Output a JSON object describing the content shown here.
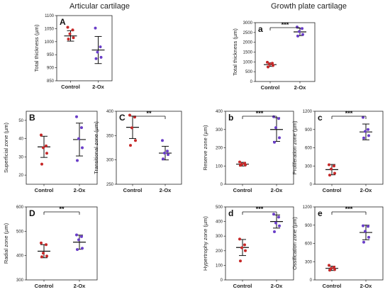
{
  "headings": {
    "left": "Articular cartilage",
    "right": "Growth plate cartilage"
  },
  "colors": {
    "control": "#c62828",
    "treatment": "#6a3ec8",
    "axis": "#222222"
  },
  "chart_data": [
    {
      "type": "scatter",
      "letter": "A",
      "ylabel": "Total thickness (µm)",
      "ylim": [
        850,
        1100
      ],
      "yticks": [
        850,
        900,
        950,
        1000,
        1050,
        1100
      ],
      "categories": [
        "Control",
        "2-Ox"
      ],
      "series": [
        {
          "points": [
            1055,
            1045,
            1030,
            1015,
            1010
          ],
          "mean": 1022,
          "sd": 20
        },
        {
          "points": [
            1052,
            980,
            960,
            940,
            935
          ],
          "mean": 968,
          "sd": 52
        }
      ],
      "significance": null
    },
    {
      "type": "scatter",
      "letter": "a",
      "ylabel": "Total thickness (µm)",
      "ylim": [
        0,
        3000
      ],
      "yticks": [
        0,
        500,
        1000,
        1500,
        2000,
        2500,
        3000
      ],
      "categories": [
        "Control",
        "2-Ox"
      ],
      "series": [
        {
          "points": [
            980,
            930,
            880,
            820,
            740
          ],
          "mean": 860,
          "sd": 90
        },
        {
          "points": [
            2780,
            2700,
            2550,
            2400,
            2320
          ],
          "mean": 2530,
          "sd": 190
        }
      ],
      "significance": "***"
    },
    {
      "type": "scatter",
      "letter": "B",
      "ylabel": "Superficial zone (µm)",
      "ylim": [
        15,
        55
      ],
      "yticks": [
        20,
        30,
        40,
        50
      ],
      "categories": [
        "Control",
        "2-Ox"
      ],
      "series": [
        {
          "points": [
            42,
            36,
            35,
            32,
            26
          ],
          "mean": 35.5,
          "sd": 5.8
        },
        {
          "points": [
            52,
            46,
            40,
            35,
            28
          ],
          "mean": 39.5,
          "sd": 9
        }
      ],
      "significance": null
    },
    {
      "type": "scatter",
      "letter": "C",
      "ylabel": "Transitional zone (µm)",
      "ylim": [
        250,
        400
      ],
      "yticks": [
        250,
        300,
        350,
        400
      ],
      "categories": [
        "Control",
        "2-Ox"
      ],
      "series": [
        {
          "points": [
            392,
            388,
            366,
            340,
            330
          ],
          "mean": 367,
          "sd": 23
        },
        {
          "points": [
            340,
            318,
            314,
            311,
            302
          ],
          "mean": 314,
          "sd": 14
        }
      ],
      "significance": "**"
    },
    {
      "type": "scatter",
      "letter": "b",
      "ylabel": "Reserve zone (µm)",
      "ylim": [
        0,
        400
      ],
      "yticks": [
        0,
        100,
        200,
        300,
        400
      ],
      "categories": [
        "Control",
        "2-Ox"
      ],
      "series": [
        {
          "points": [
            122,
            115,
            110,
            106,
            104
          ],
          "mean": 110,
          "sd": 10
        },
        {
          "points": [
            370,
            360,
            310,
            255,
            230
          ],
          "mean": 300,
          "sd": 65
        }
      ],
      "significance": "***"
    },
    {
      "type": "scatter",
      "letter": "c",
      "ylabel": "Proliferation zone (µm)",
      "ylim": [
        0,
        1200
      ],
      "yticks": [
        0,
        300,
        600,
        900,
        1200
      ],
      "categories": [
        "Control",
        "2-Ox"
      ],
      "series": [
        {
          "points": [
            320,
            300,
            250,
            180,
            150
          ],
          "mean": 240,
          "sd": 85
        },
        {
          "points": [
            1100,
            900,
            870,
            800,
            760
          ],
          "mean": 860,
          "sd": 130
        }
      ],
      "significance": "***"
    },
    {
      "type": "scatter",
      "letter": "D",
      "ylabel": "Radial zone (µm)",
      "ylim": [
        300,
        600
      ],
      "yticks": [
        300,
        400,
        500,
        600
      ],
      "categories": [
        "Control",
        "2-Ox"
      ],
      "series": [
        {
          "points": [
            452,
            445,
            410,
            398,
            395
          ],
          "mean": 418,
          "sd": 27
        },
        {
          "points": [
            485,
            478,
            465,
            430,
            425
          ],
          "mean": 455,
          "sd": 29
        }
      ],
      "significance": "**"
    },
    {
      "type": "scatter",
      "letter": "d",
      "ylabel": "Hypertrophy zone (µm)",
      "ylim": [
        0,
        500
      ],
      "yticks": [
        0,
        100,
        200,
        300,
        400,
        500
      ],
      "categories": [
        "Control",
        "2-Ox"
      ],
      "series": [
        {
          "points": [
            280,
            240,
            220,
            200,
            130
          ],
          "mean": 222,
          "sd": 55
        },
        {
          "points": [
            450,
            430,
            390,
            370,
            330
          ],
          "mean": 400,
          "sd": 45
        }
      ],
      "significance": "***"
    },
    {
      "type": "scatter",
      "letter": "e",
      "ylabel": "Ossification zone (µm)",
      "ylim": [
        0,
        1200
      ],
      "yticks": [
        0,
        300,
        600,
        900,
        1200
      ],
      "categories": [
        "Control",
        "2-Ox"
      ],
      "series": [
        {
          "points": [
            240,
            210,
            190,
            170,
            160
          ],
          "mean": 190,
          "sd": 35
        },
        {
          "points": [
            890,
            880,
            800,
            700,
            620
          ],
          "mean": 780,
          "sd": 120
        }
      ],
      "significance": "***"
    }
  ]
}
